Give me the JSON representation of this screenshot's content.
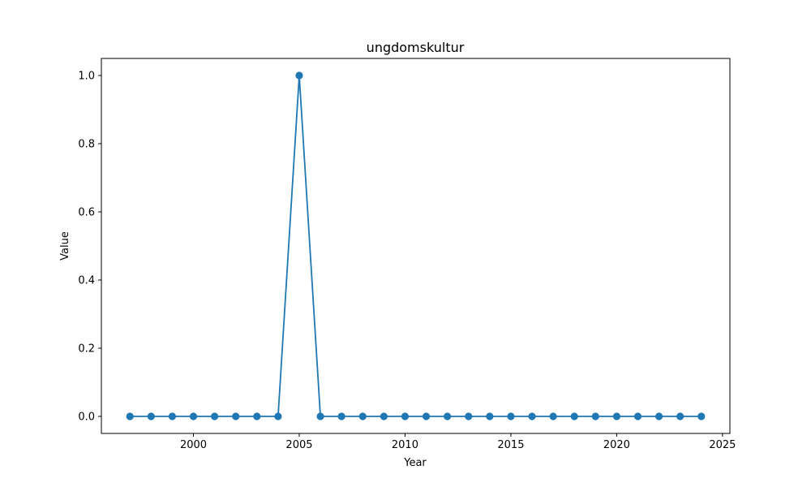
{
  "chart_data": {
    "type": "line",
    "title": "ungdomskultur",
    "xlabel": "Year",
    "ylabel": "Value",
    "x": [
      1997,
      1998,
      1999,
      2000,
      2001,
      2002,
      2003,
      2004,
      2005,
      2006,
      2007,
      2008,
      2009,
      2010,
      2011,
      2012,
      2013,
      2014,
      2015,
      2016,
      2017,
      2018,
      2019,
      2020,
      2021,
      2022,
      2023,
      2024
    ],
    "series": [
      {
        "values": [
          0,
          0,
          0,
          0,
          0,
          0,
          0,
          0,
          1,
          0,
          0,
          0,
          0,
          0,
          0,
          0,
          0,
          0,
          0,
          0,
          0,
          0,
          0,
          0,
          0,
          0,
          0,
          0
        ],
        "color": "#1f77b4",
        "marker": "circle"
      }
    ],
    "xlim": [
      1995.65,
      2025.35
    ],
    "ylim": [
      -0.05,
      1.05
    ],
    "xticks": [
      2000,
      2005,
      2010,
      2015,
      2020,
      2025
    ],
    "yticks": [
      0.0,
      0.2,
      0.4,
      0.6,
      0.8,
      1.0
    ],
    "ytick_labels": [
      "0.0",
      "0.2",
      "0.4",
      "0.6",
      "0.8",
      "1.0"
    ],
    "grid": false,
    "legend": "none"
  }
}
